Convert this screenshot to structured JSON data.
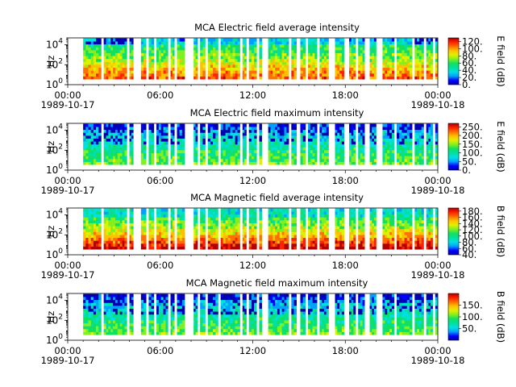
{
  "chart_data": [
    {
      "type": "heatmap",
      "title": "MCA  Electric field average intensity",
      "ylabel": "Hz",
      "y_scale": "log",
      "ylim": [
        1,
        50000
      ],
      "y_ticks": [
        {
          "v": 1,
          "e": "0"
        },
        {
          "v": 100,
          "e": "2"
        },
        {
          "v": 10000,
          "e": "4"
        }
      ],
      "xlim": [
        "1989-10-17T00:00",
        "1989-10-18T00:00"
      ],
      "x_ticks": [
        {
          "time": "00:00",
          "date": "1989-10-17"
        },
        {
          "time": "06:00",
          "date": ""
        },
        {
          "time": "12:00",
          "date": ""
        },
        {
          "time": "18:00",
          "date": ""
        },
        {
          "time": "00:00",
          "date": "1989-10-18"
        }
      ],
      "colorbar": {
        "label": "E field (dB)",
        "range": [
          0,
          130
        ],
        "ticks": [
          "0.",
          "20.",
          "40.",
          "60.",
          "80.",
          "100.",
          "120."
        ]
      }
    },
    {
      "type": "heatmap",
      "title": "MCA  Electric field maximum intensity",
      "ylabel": "Hz",
      "y_scale": "log",
      "ylim": [
        1,
        50000
      ],
      "y_ticks": [
        {
          "v": 1,
          "e": "0"
        },
        {
          "v": 100,
          "e": "2"
        },
        {
          "v": 10000,
          "e": "4"
        }
      ],
      "xlim": [
        "1989-10-17T00:00",
        "1989-10-18T00:00"
      ],
      "x_ticks": [
        {
          "time": "00:00",
          "date": "1989-10-17"
        },
        {
          "time": "06:00",
          "date": ""
        },
        {
          "time": "12:00",
          "date": ""
        },
        {
          "time": "18:00",
          "date": ""
        },
        {
          "time": "00:00",
          "date": "1989-10-18"
        }
      ],
      "colorbar": {
        "label": "E field (dB)",
        "range": [
          0,
          270
        ],
        "ticks": [
          "0.",
          "50.",
          "100.",
          "150.",
          "200.",
          "250."
        ]
      }
    },
    {
      "type": "heatmap",
      "title": "MCA  Magnetic field average intensity",
      "ylabel": "Hz",
      "y_scale": "log",
      "ylim": [
        1,
        50000
      ],
      "y_ticks": [
        {
          "v": 1,
          "e": "0"
        },
        {
          "v": 100,
          "e": "2"
        },
        {
          "v": 10000,
          "e": "4"
        }
      ],
      "xlim": [
        "1989-10-17T00:00",
        "1989-10-18T00:00"
      ],
      "x_ticks": [
        {
          "time": "00:00",
          "date": "1989-10-17"
        },
        {
          "time": "06:00",
          "date": ""
        },
        {
          "time": "12:00",
          "date": ""
        },
        {
          "time": "18:00",
          "date": ""
        },
        {
          "time": "00:00",
          "date": "1989-10-18"
        }
      ],
      "colorbar": {
        "label": "B field (dB)",
        "range": [
          40,
          190
        ],
        "ticks": [
          "40.",
          "60.",
          "80.",
          "100.",
          "120.",
          "140.",
          "160.",
          "180."
        ]
      }
    },
    {
      "type": "heatmap",
      "title": "MCA  Magnetic field maximum intensity",
      "ylabel": "Hz",
      "y_scale": "log",
      "ylim": [
        1,
        50000
      ],
      "y_ticks": [
        {
          "v": 1,
          "e": "0"
        },
        {
          "v": 100,
          "e": "2"
        },
        {
          "v": 10000,
          "e": "4"
        }
      ],
      "xlim": [
        "1989-10-17T00:00",
        "1989-10-18T00:00"
      ],
      "x_ticks": [
        {
          "time": "00:00",
          "date": "1989-10-17"
        },
        {
          "time": "06:00",
          "date": ""
        },
        {
          "time": "12:00",
          "date": ""
        },
        {
          "time": "18:00",
          "date": ""
        },
        {
          "time": "00:00",
          "date": "1989-10-18"
        }
      ],
      "colorbar": {
        "label": "B field (dB)",
        "range": [
          0,
          200
        ],
        "ticks": [
          "50.",
          "100.",
          "150."
        ]
      }
    }
  ],
  "data_intervals": [
    [
      "01:00",
      "02:10"
    ],
    [
      "02:20",
      "03:50"
    ],
    [
      "04:00",
      "04:15"
    ],
    [
      "04:45",
      "05:05"
    ],
    [
      "05:15",
      "05:35"
    ],
    [
      "05:45",
      "06:30"
    ],
    [
      "06:40",
      "06:55"
    ],
    [
      "07:05",
      "07:35"
    ],
    [
      "08:10",
      "08:25"
    ],
    [
      "08:35",
      "08:55"
    ],
    [
      "09:05",
      "09:45"
    ],
    [
      "09:55",
      "11:10"
    ],
    [
      "11:20",
      "11:35"
    ],
    [
      "11:45",
      "12:15"
    ],
    [
      "12:25",
      "12:35"
    ],
    [
      "13:00",
      "14:20"
    ],
    [
      "14:30",
      "14:50"
    ],
    [
      "15:05",
      "15:25"
    ],
    [
      "15:35",
      "16:10"
    ],
    [
      "16:20",
      "16:55"
    ],
    [
      "17:20",
      "17:55"
    ],
    [
      "18:15",
      "18:40"
    ],
    [
      "18:50",
      "19:15"
    ],
    [
      "19:35",
      "20:00"
    ],
    [
      "20:25",
      "21:10"
    ],
    [
      "21:20",
      "22:20"
    ],
    [
      "22:30",
      "23:05"
    ],
    [
      "23:15",
      "23:40"
    ],
    [
      "23:50",
      "23:58"
    ]
  ],
  "colormap": [
    "#0000b0",
    "#0000ff",
    "#00a0ff",
    "#00e0e0",
    "#00e0a0",
    "#10e060",
    "#80f020",
    "#e0f000",
    "#ffc000",
    "#ff7000",
    "#ff2000",
    "#b00000"
  ]
}
